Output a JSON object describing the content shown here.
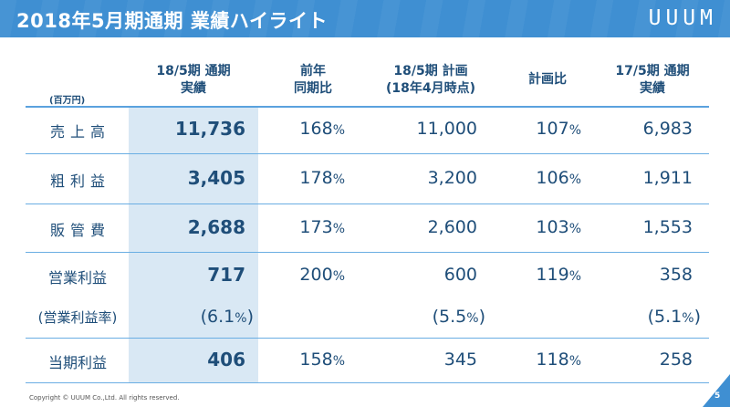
{
  "header": {
    "title": "2018年5月期通期 業績ハイライト",
    "logo": "UUUM"
  },
  "table": {
    "unit_label": "(百万円)",
    "columns": [
      {
        "line1": "18/5期 通期",
        "line2": "実績"
      },
      {
        "line1": "前年",
        "line2": "同期比"
      },
      {
        "line1": "18/5期 計画",
        "line2": "(18年4月時点)"
      },
      {
        "line1": "計画比",
        "line2": ""
      },
      {
        "line1": "17/5期 通期",
        "line2": "実績"
      }
    ],
    "rows": [
      {
        "label": "売上高",
        "actual": "11,736",
        "yoy_num": "168",
        "yoy_pct": "%",
        "plan": "11,000",
        "vsplan_num": "107",
        "vsplan_pct": "%",
        "prev": "6,983"
      },
      {
        "label": "粗利益",
        "actual": "3,405",
        "yoy_num": "178",
        "yoy_pct": "%",
        "plan": "3,200",
        "vsplan_num": "106",
        "vsplan_pct": "%",
        "prev": "1,911"
      },
      {
        "label": "販管費",
        "actual": "2,688",
        "yoy_num": "173",
        "yoy_pct": "%",
        "plan": "2,600",
        "vsplan_num": "103",
        "vsplan_pct": "%",
        "prev": "1,553"
      },
      {
        "label": "営業利益",
        "actual": "717",
        "yoy_num": "200",
        "yoy_pct": "%",
        "plan": "600",
        "vsplan_num": "119",
        "vsplan_pct": "%",
        "prev": "358"
      },
      {
        "label": "(営業利益率)",
        "actual_a": "(6.1",
        "actual_b": "%",
        "actual_c": ")",
        "plan_a": "(5.5",
        "plan_b": "%",
        "plan_c": ")",
        "prev_a": "(5.1",
        "prev_b": "%",
        "prev_c": ")"
      },
      {
        "label": "当期利益",
        "actual": "406",
        "yoy_num": "158",
        "yoy_pct": "%",
        "plan": "345",
        "vsplan_num": "118",
        "vsplan_pct": "%",
        "prev": "258"
      }
    ]
  },
  "footer": {
    "copyright": "Copyright © UUUM Co.,Ltd. All rights reserved.",
    "page_number": "5"
  },
  "colors": {
    "header_bg": "#3f8fd2",
    "text": "#1f4e79",
    "highlight_col": "#d9e8f4",
    "rule": "#6aaee3"
  }
}
